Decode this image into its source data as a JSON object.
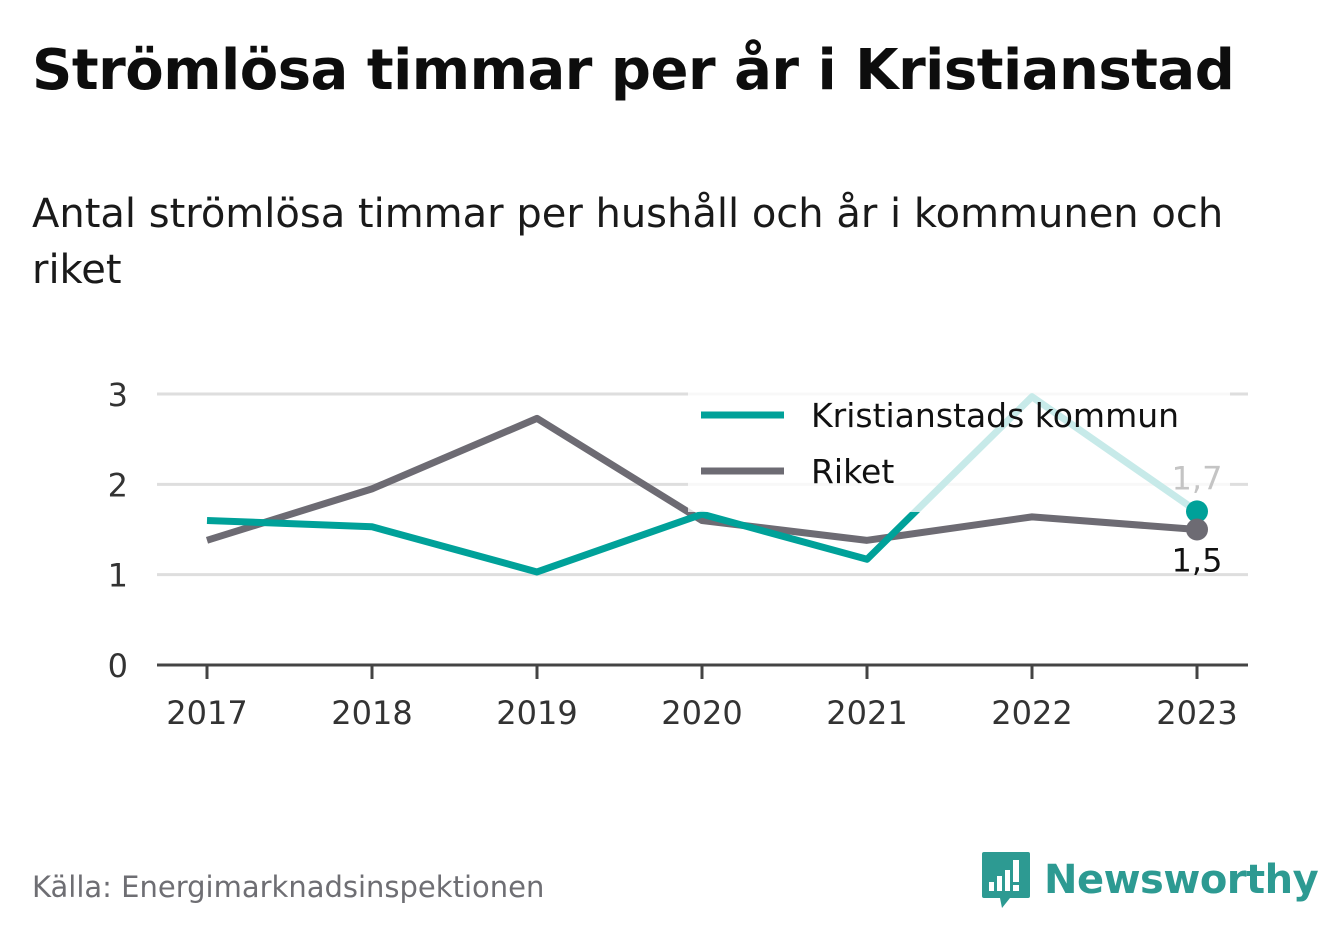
{
  "title": "Strömlösa timmar per år i Kristianstad",
  "subtitle": "Antal strömlösa timmar per hushåll och år i kommunen och riket",
  "source": "Källa: Energimarknadsinspektionen",
  "brand": {
    "name": "Newsworthy",
    "icon": "newsworthy-logo-icon",
    "color": "#2d9a92"
  },
  "chart_data": {
    "type": "line",
    "x": [
      "2017",
      "2018",
      "2019",
      "2020",
      "2021",
      "2022",
      "2023"
    ],
    "ylim": [
      0,
      3
    ],
    "yticks": [
      "0",
      "1",
      "2",
      "3"
    ],
    "grid": true,
    "legend_position": "top-right",
    "series": [
      {
        "name": "Kristianstads kommun",
        "color": "#00a199",
        "values": [
          1.6,
          1.53,
          1.03,
          1.67,
          1.17,
          2.97,
          1.7
        ],
        "end_label": "1,7"
      },
      {
        "name": "Riket",
        "color": "#6d6b73",
        "values": [
          1.38,
          1.95,
          2.73,
          1.6,
          1.38,
          1.64,
          1.5
        ],
        "end_label": "1,5"
      }
    ]
  }
}
